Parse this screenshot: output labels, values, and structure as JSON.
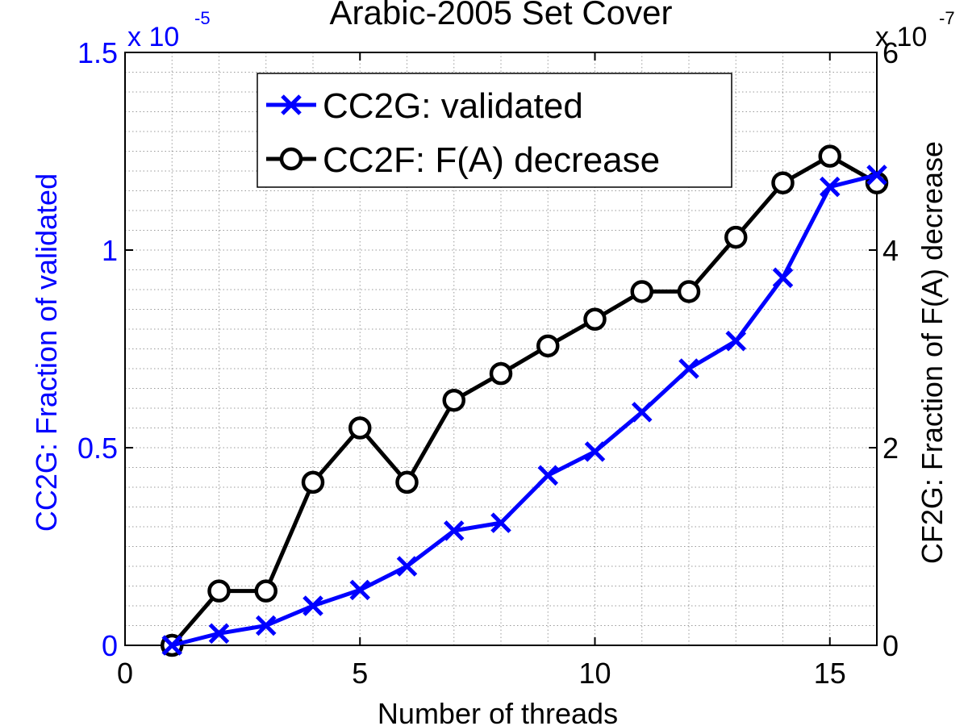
{
  "chart_data": {
    "type": "line",
    "title": "Arabic-2005 Set Cover",
    "xlabel": "Number of threads",
    "ylabel_left": "CC2G: Fraction of validated",
    "ylabel_right": "CF2G: Fraction of F(A) decrease",
    "xlim": [
      0,
      16
    ],
    "ylim_left": [
      0,
      1.5
    ],
    "ylim_right": [
      0,
      6
    ],
    "x_ticks": [
      "0",
      "5",
      "10",
      "15"
    ],
    "y_left_ticks": [
      "0",
      "0.5",
      "1",
      "1.5"
    ],
    "y_right_ticks": [
      "0",
      "2",
      "4",
      "6"
    ],
    "y_left_multiplier": "x 10",
    "y_left_exponent": "-5",
    "y_right_multiplier": "x 10",
    "y_right_exponent": "-7",
    "grid": true,
    "legend_position": "top-center",
    "colors": {
      "left_axis": "#0000ff",
      "right_axis": "#000000"
    },
    "series": [
      {
        "name": "CC2G: validated",
        "axis": "left",
        "marker": "x",
        "color": "#0000ff",
        "x": [
          1,
          2,
          3,
          4,
          5,
          6,
          7,
          8,
          9,
          10,
          11,
          12,
          13,
          14,
          15,
          16
        ],
        "y": [
          0,
          0.03,
          0.05,
          0.1,
          0.14,
          0.2,
          0.29,
          0.31,
          0.43,
          0.49,
          0.59,
          0.7,
          0.77,
          0.93,
          1.16,
          1.19
        ]
      },
      {
        "name": "CC2F: F(A) decrease",
        "axis": "right",
        "marker": "o",
        "color": "#000000",
        "x": [
          1,
          2,
          3,
          4,
          5,
          6,
          7,
          8,
          9,
          10,
          11,
          12,
          13,
          14,
          15,
          16
        ],
        "y": [
          0,
          0.55,
          0.55,
          1.65,
          2.2,
          1.65,
          2.48,
          2.75,
          3.03,
          3.3,
          3.58,
          3.58,
          4.13,
          4.68,
          4.95,
          4.68
        ]
      }
    ]
  }
}
